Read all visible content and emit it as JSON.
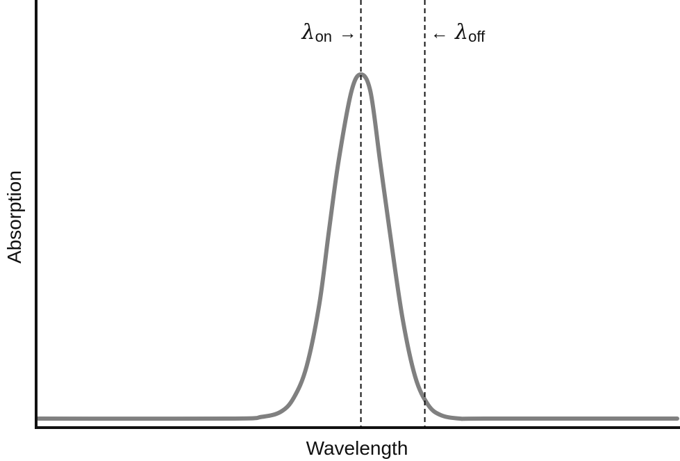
{
  "chart_data": {
    "type": "line",
    "xlabel": "Wavelength",
    "ylabel": "Absorption",
    "xlim": [
      0,
      1
    ],
    "ylim": [
      0,
      1.15
    ],
    "grid": false,
    "series": [
      {
        "color": "#808080",
        "x": [
          0,
          0.3,
          0.35,
          0.38,
          0.4,
          0.42,
          0.44,
          0.455,
          0.47,
          0.49,
          0.505,
          0.52,
          0.535,
          0.55,
          0.57,
          0.59,
          0.61,
          0.63,
          0.66,
          0.7,
          1
        ],
        "y": [
          0.01,
          0.01,
          0.015,
          0.03,
          0.07,
          0.16,
          0.34,
          0.55,
          0.75,
          0.95,
          1.0,
          0.95,
          0.75,
          0.55,
          0.3,
          0.13,
          0.05,
          0.02,
          0.01,
          0.01,
          0.01
        ]
      }
    ],
    "annotations": [
      {
        "base": "λ",
        "sub": "on",
        "x": 0.505,
        "arrow": "→"
      },
      {
        "base": "λ",
        "sub": "off",
        "x": 0.605,
        "arrow": "←"
      }
    ]
  }
}
